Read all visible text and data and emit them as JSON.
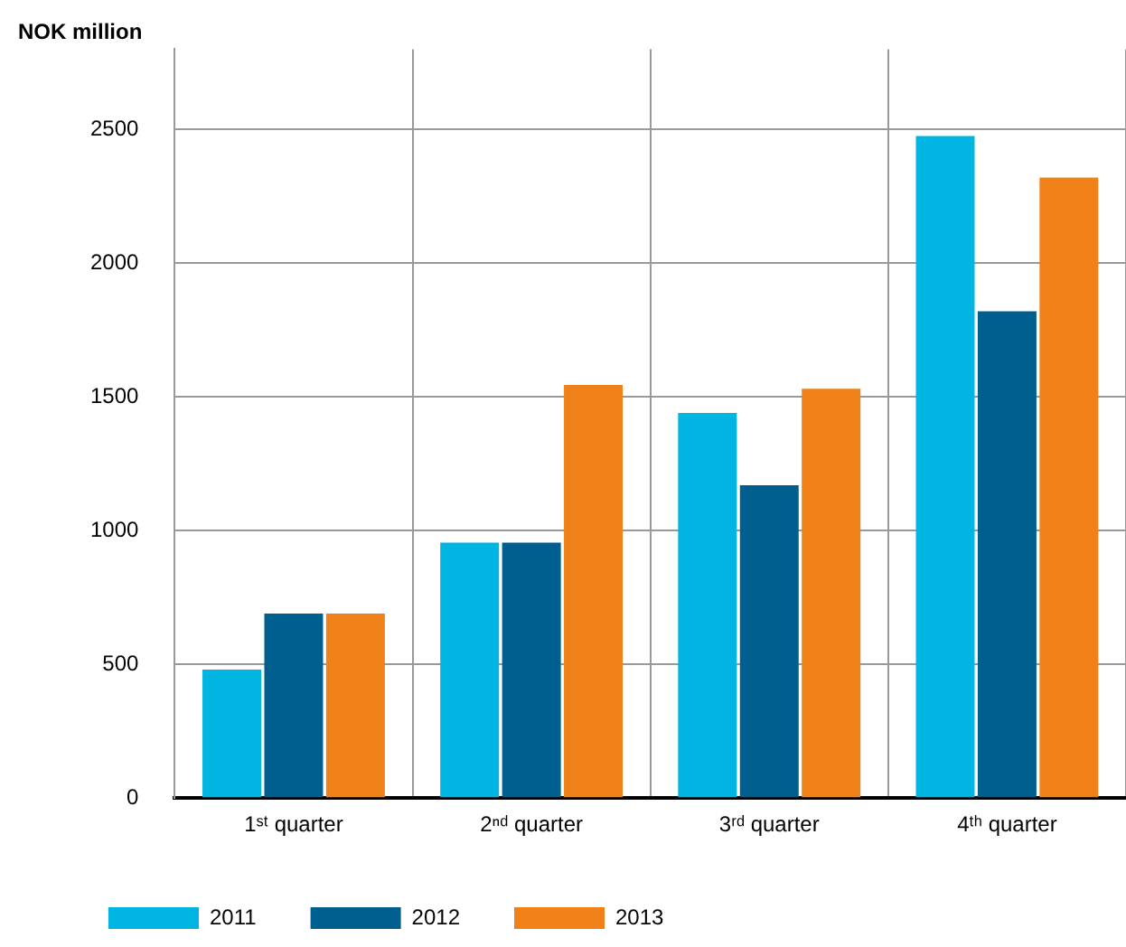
{
  "chart_data": {
    "type": "bar",
    "ylabel": "NOK million",
    "categories": [
      "1ˢᵗ quarter",
      "2ⁿᵈ quarter",
      "3ʳᵈ quarter",
      "4ᵗʰ quarter"
    ],
    "series": [
      {
        "name": "2011",
        "color": "#00b5e2",
        "values": [
          480,
          955,
          1440,
          2475
        ]
      },
      {
        "name": "2012",
        "color": "#005f8f",
        "values": [
          690,
          955,
          1170,
          1820
        ]
      },
      {
        "name": "2013",
        "color": "#f08119",
        "values": [
          690,
          1545,
          1530,
          2320
        ]
      }
    ],
    "ylim": [
      0,
      2800
    ],
    "yticks": [
      0,
      500,
      1000,
      1500,
      2000,
      2500
    ],
    "grid": true,
    "legend": "bottom"
  }
}
